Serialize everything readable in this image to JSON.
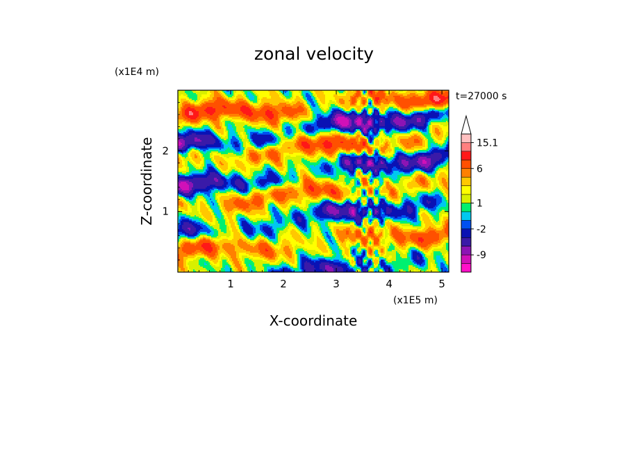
{
  "chart_data": {
    "type": "heatmap",
    "title": "zonal velocity",
    "xlabel": "X-coordinate",
    "ylabel": "Z-coordinate",
    "x_units": "(x1E5 m)",
    "y_units": "(x1E4 m)",
    "time_label": "t=27000 s",
    "xlim": [
      0,
      5.13
    ],
    "ylim": [
      0,
      3.0
    ],
    "x_ticks": [
      "1",
      "2",
      "3",
      "4",
      "5"
    ],
    "x_tick_values": [
      1,
      2,
      3,
      4,
      5
    ],
    "y_ticks": [
      "1",
      "2"
    ],
    "y_tick_values": [
      1,
      2
    ],
    "colorbar": {
      "extend_top": true,
      "labels": [
        "15.1",
        "6",
        "1",
        "-2",
        "-9"
      ],
      "label_levels": [
        15.1,
        6,
        1,
        -2,
        -9
      ],
      "levels": [
        -18,
        -13.5,
        -9,
        -6.5,
        -4,
        -2,
        -1,
        0,
        1,
        2,
        3,
        4.5,
        6,
        9,
        12,
        15.1,
        18
      ],
      "colors": [
        "#ff10c8",
        "#d010b8",
        "#8c14b4",
        "#3a1aa8",
        "#0a12b4",
        "#0050f0",
        "#00c8f0",
        "#00f070",
        "#d8f000",
        "#ffff00",
        "#ffc800",
        "#ff8000",
        "#ff5000",
        "#ff1818",
        "#ff8080",
        "#ffc0c0"
      ]
    },
    "bands": [
      {
        "z": 2.8,
        "amp": 7,
        "phase": 0.0,
        "note": "orange/red near top"
      },
      {
        "z": 2.45,
        "amp": -8,
        "phase": 1.2,
        "note": "blue layer"
      },
      {
        "z": 2.1,
        "amp": 6,
        "phase": 2.0,
        "note": "orange layer"
      },
      {
        "z": 1.75,
        "amp": -7,
        "phase": 0.7,
        "note": "blue layer"
      },
      {
        "z": 1.35,
        "amp": 5,
        "phase": 2.6,
        "note": "orange layer"
      },
      {
        "z": 1.0,
        "amp": -6,
        "phase": 1.5,
        "note": "blue layer"
      },
      {
        "z": 0.55,
        "amp": 5,
        "phase": 0.3,
        "note": "orange blob"
      },
      {
        "z": 0.08,
        "amp": -5,
        "phase": 2.2,
        "note": "blue bottom"
      }
    ]
  }
}
